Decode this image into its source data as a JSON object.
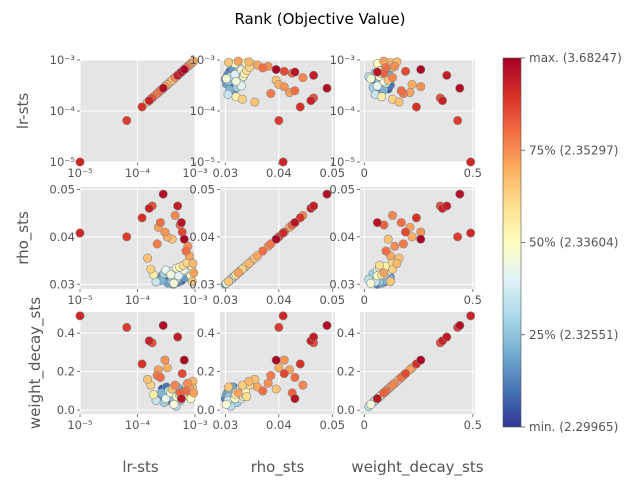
{
  "chart_data": {
    "type": "scatter",
    "title": "Rank (Objective Value)",
    "variables": [
      "lr-sts",
      "rho_sts",
      "weight_decay_sts"
    ],
    "axis_labels": {
      "x": [
        "lr-sts",
        "rho_sts",
        "weight_decay_sts"
      ],
      "y": [
        "lr-sts",
        "rho_sts",
        "weight_decay_sts"
      ]
    },
    "scales": {
      "lr-sts": "log",
      "rho_sts": "linear",
      "weight_decay_sts": "linear"
    },
    "ranges": {
      "lr-sts": [
        1e-05,
        0.001
      ],
      "rho_sts": [
        0.029,
        0.0505
      ],
      "weight_decay_sts": [
        -0.02,
        0.51
      ]
    },
    "ticks": {
      "lr-sts": {
        "values": [
          1e-05,
          0.0001,
          0.001
        ],
        "labels": [
          "10⁻⁵",
          "10⁻⁴",
          "10⁻³"
        ]
      },
      "rho_sts": {
        "values": [
          0.03,
          0.04,
          0.05
        ],
        "labels": [
          "0.03",
          "0.04",
          "0.05"
        ]
      },
      "weight_decay_sts": {
        "values": [
          0.0,
          0.2,
          0.4
        ],
        "labels": [
          "0.0",
          "0.2",
          "0.4"
        ],
        "x_values": [
          0,
          0.5
        ],
        "x_labels": [
          "0",
          "0.5"
        ]
      }
    },
    "grid": true,
    "colorbar": {
      "colormap": "RdYlBu_r",
      "labels": [
        "min. (2.29965)",
        "25% (2.32551)",
        "50% (2.33604)",
        "75% (2.35297)",
        "max. (3.68247)"
      ],
      "values": [
        0,
        0.25,
        0.5,
        0.75,
        1.0
      ]
    },
    "points": [
      [
        1e-05,
        0.0408,
        0.49,
        0.92
      ],
      [
        6.5e-05,
        0.04,
        0.43,
        0.88
      ],
      [
        0.00012,
        0.044,
        0.24,
        0.9
      ],
      [
        0.00016,
        0.046,
        0.36,
        0.93
      ],
      [
        0.00018,
        0.0465,
        0.35,
        0.85
      ],
      [
        0.00022,
        0.0385,
        0.18,
        0.78
      ],
      [
        0.00023,
        0.042,
        0.21,
        0.72
      ],
      [
        0.00025,
        0.043,
        0.17,
        0.8
      ],
      [
        0.00028,
        0.049,
        0.44,
        0.97
      ],
      [
        0.0003,
        0.041,
        0.26,
        0.74
      ],
      [
        0.00033,
        0.04,
        0.22,
        0.7
      ],
      [
        0.0004,
        0.0395,
        0.11,
        0.66
      ],
      [
        0.00045,
        0.0445,
        0.13,
        0.76
      ],
      [
        0.0005,
        0.0465,
        0.38,
        0.94
      ],
      [
        0.00055,
        0.0425,
        0.09,
        0.82
      ],
      [
        0.0006,
        0.041,
        0.19,
        0.86
      ],
      [
        0.00065,
        0.0395,
        0.26,
        0.99
      ],
      [
        0.0007,
        0.037,
        0.1,
        0.8
      ],
      [
        0.00075,
        0.038,
        0.14,
        0.75
      ],
      [
        0.0008,
        0.036,
        0.12,
        0.71
      ],
      [
        0.00058,
        0.043,
        0.06,
        0.96
      ],
      [
        0.00019,
        0.032,
        0.08,
        0.55
      ],
      [
        0.00021,
        0.0305,
        0.05,
        0.35
      ],
      [
        0.00024,
        0.0312,
        0.07,
        0.15
      ],
      [
        0.00026,
        0.0308,
        0.09,
        0.22
      ],
      [
        0.00027,
        0.0318,
        0.11,
        0.05
      ],
      [
        0.00029,
        0.0322,
        0.04,
        0.28
      ],
      [
        0.00031,
        0.033,
        0.06,
        0.42
      ],
      [
        0.00032,
        0.0315,
        0.12,
        0.1
      ],
      [
        0.00034,
        0.0302,
        0.08,
        0.18
      ],
      [
        0.00035,
        0.0326,
        0.1,
        0.33
      ],
      [
        0.00036,
        0.031,
        0.05,
        0.08
      ],
      [
        0.00038,
        0.032,
        0.09,
        0.45
      ],
      [
        0.00039,
        0.0306,
        0.07,
        0.25
      ],
      [
        0.00041,
        0.0328,
        0.11,
        0.38
      ],
      [
        0.00042,
        0.03,
        0.06,
        0.12
      ],
      [
        0.00044,
        0.0316,
        0.08,
        0.02
      ],
      [
        0.00046,
        0.0324,
        0.1,
        0.3
      ],
      [
        0.00048,
        0.0334,
        0.07,
        0.48
      ],
      [
        0.00049,
        0.0312,
        0.12,
        0.2
      ],
      [
        0.00051,
        0.0304,
        0.09,
        0.14
      ],
      [
        0.00052,
        0.0318,
        0.06,
        0.4
      ],
      [
        0.00054,
        0.0336,
        0.08,
        0.52
      ],
      [
        0.00056,
        0.0322,
        0.05,
        0.27
      ],
      [
        0.00059,
        0.0308,
        0.1,
        0.06
      ],
      [
        0.00062,
        0.034,
        0.07,
        0.6
      ],
      [
        0.00064,
        0.033,
        0.09,
        0.44
      ],
      [
        0.00068,
        0.0314,
        0.11,
        0.17
      ],
      [
        0.00072,
        0.0345,
        0.13,
        0.62
      ],
      [
        0.00076,
        0.0326,
        0.08,
        0.36
      ],
      [
        0.00082,
        0.035,
        0.14,
        0.58
      ],
      [
        0.00085,
        0.0318,
        0.06,
        0.5
      ],
      [
        0.00088,
        0.0338,
        0.1,
        0.54
      ],
      [
        0.0009,
        0.0306,
        0.12,
        0.65
      ],
      [
        0.00092,
        0.0344,
        0.15,
        0.68
      ],
      [
        0.00095,
        0.0324,
        0.09,
        0.72
      ],
      [
        0.00017,
        0.0332,
        0.13,
        0.63
      ],
      [
        0.00015,
        0.0355,
        0.16,
        0.66
      ],
      [
        0.00043,
        0.0302,
        0.03,
        0.46
      ],
      [
        0.00047,
        0.031,
        0.02,
        0.32
      ]
    ]
  }
}
